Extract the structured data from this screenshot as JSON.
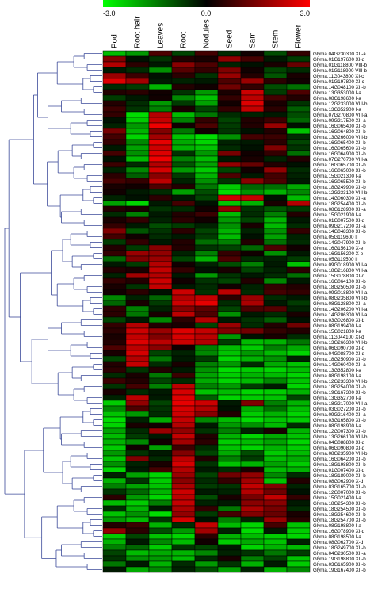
{
  "chart_data": {
    "type": "heatmap",
    "title": "",
    "color_scale": {
      "min": -3.0,
      "mid": 0.0,
      "max": 3.0,
      "min_label": "-3.0",
      "mid_label": "0.0",
      "max_label": "3.0",
      "low_color": "#00ff00",
      "mid_color": "#000000",
      "high_color": "#ff0000"
    },
    "columns": [
      "Pod",
      "Root hair",
      "Leaves",
      "Root",
      "Nodules",
      "Seed",
      "Sam",
      "Stem",
      "Flower"
    ],
    "rows": [
      "Glyma.04G230300 XII-a",
      "Glyma.01G197600 XI-d",
      "Glyma.01G118800 VIII-b",
      "Glyma.01G118900 VIII-b",
      "Glyma.11G043800 XI-c",
      "Glyma.01G197800 XI-c",
      "Glyma.14G048100 XII-b",
      "Glyma.13G353000 I-a",
      "Glyma.08G198600 I-a",
      "Glyma.12G233000 VIII-b",
      "Glyma.13G352900 I-a",
      "Glyma.07G270800 VIII-a",
      "Glyma.09G217500 XII-a",
      "Glyma.16G065400 XII-b",
      "Glyma.16G064800 XII-b",
      "Glyma.13G266000 VIII-b",
      "Glyma.16G065400 XII-b",
      "Glyma.16G065600 XII-b",
      "Glyma.16G064900 XII-b",
      "Glyma.07G270700 VIII-a",
      "Glyma.16G065700 XII-b",
      "Glyma.16G065000 XII-b",
      "Glyma.15G021300 I-a",
      "Glyma.16G065500 XII-b",
      "Glyma.18G249900 XII-b",
      "Glyma.12G233100 VIII-b",
      "Glyma.14G060300 XII-a",
      "Glyma.18G254400 XII-b",
      "Glyma.08G128900 XII-a",
      "Glyma.15G021900 I-a",
      "Glyma.01G007500 XI-d",
      "Glyma.09G217200 XII-a",
      "Glyma.14G048300 XII-b",
      "Glyma.05G119600 II",
      "Glyma.14G047900 XII-b",
      "Glyma.16G156100 X-e",
      "Glyma.16G156200 X-e",
      "Glyma.05G119500 II",
      "Glyma.09G018900 VIII-a",
      "Glyma.18G216800 VIII-a",
      "Glyma.15G078800 XI-d",
      "Glyma.16G064100 XII-b",
      "Glyma.18G250500 XII-b",
      "Glyma.09G018800 VIII-a",
      "Glyma.08G235800 VIII-b",
      "Glyma.08G128800 XII-a",
      "Glyma.14G206200 VIII-a",
      "Glyma.14G206300 VIII-a",
      "Glyma.03G026800 XI-b",
      "Glyma.08G199400 I-a",
      "Glyma.15G021800 I-a",
      "Glyma.11G044100 XI-d",
      "Glyma.13G266300 VIII-b",
      "Glyma.06G090700 XI-d",
      "Glyma.04G088700 XI-d",
      "Glyma.18G250900 XII-b",
      "Glyma.14G060400 XII-a",
      "Glyma.13G352800 I-a",
      "Glyma.08G198100 I-a",
      "Glyma.12G233300 VIII-b",
      "Glyma.18G254000 XII-b",
      "Glyma.19G167300 XII-b",
      "Glyma.13G352700 I-a",
      "Glyma.18G217000 VIII-a",
      "Glyma.03G027200 XII-b",
      "Glyma.09G216400 XII-a",
      "Glyma.03G165800 XII-b",
      "Glyma.08G198900 I-a",
      "Glyma.12G007300 XII-b",
      "Glyma.13G266100 VIII-b",
      "Glyma.04G088800 XI-d",
      "Glyma.06G090800 XI-d",
      "Glyma.08G235900 VIII-b",
      "Glyma.16G064200 XII-b",
      "Glyma.18G198800 XII-b",
      "Glyma.01G007400 XI-d",
      "Glyma.18G189000 XII-b",
      "Glyma.08G062900 X-d",
      "Glyma.03G165700 XII-b",
      "Glyma.12G007000 XII-b",
      "Glyma.15G021400 I-a",
      "Glyma.18G254300 XII-b",
      "Glyma.18G254500 XII-b",
      "Glyma.18G254600 XII-b",
      "Glyma.18G254700 XII-b",
      "Glyma.08G198800 I-a",
      "Glyma.16G078900 XI-d",
      "Glyma.08G198500 I-a",
      "Glyma.08G062700 X-d",
      "Glyma.18G249700 XII-b",
      "Glyma.04G230500 XII-a",
      "Glyma.19G198800 XII-b",
      "Glyma.03G165900 XII-b",
      "Glyma.19G167400 XII-b"
    ],
    "values": [
      [
        -2.2,
        -1.8,
        0.9,
        -0.8,
        0.8,
        -0.5,
        0.2,
        -0.9,
        0.6
      ],
      [
        1.5,
        -0.2,
        -0.6,
        0.4,
        0.3,
        1.7,
        0.8,
        -0.3,
        -0.7
      ],
      [
        2.1,
        0.5,
        -0.3,
        1.6,
        0.9,
        -0.4,
        -0.2,
        0.3,
        1.2
      ],
      [
        -0.3,
        -0.5,
        -1.7,
        1.0,
        0.6,
        1.5,
        0.2,
        -0.8,
        -0.5
      ],
      [
        1.8,
        0.7,
        -0.2,
        0.5,
        -0.6,
        1.8,
        0.4,
        -1.0,
        0.3
      ],
      [
        2.6,
        1.9,
        -0.3,
        -0.4,
        -0.3,
        0.9,
        1.8,
        0.5,
        0.2
      ],
      [
        -0.5,
        -0.7,
        -2.1,
        0.4,
        0.2,
        1.3,
        0.6,
        -0.9,
        -1.3
      ],
      [
        0.4,
        0.5,
        0.2,
        -0.6,
        -1.8,
        0.3,
        2.4,
        -0.7,
        0.9
      ],
      [
        -0.7,
        -0.3,
        0.2,
        -1.6,
        -2.3,
        0.6,
        2.2,
        0.8,
        0.4
      ],
      [
        0.4,
        -0.5,
        -1.8,
        -0.7,
        -1.9,
        0.2,
        2.6,
        0.3,
        -0.6
      ],
      [
        0.7,
        -0.6,
        -1.5,
        0.3,
        -0.8,
        0.6,
        2.3,
        0.5,
        -1.1
      ],
      [
        0.6,
        -2.6,
        2.1,
        -2.2,
        -1.4,
        -0.5,
        -0.4,
        -0.3,
        -0.9
      ],
      [
        -0.2,
        -2.4,
        2.3,
        -1.5,
        0.6,
        -0.8,
        0.4,
        0.7,
        -1.2
      ],
      [
        -0.4,
        -1.8,
        2.8,
        0.2,
        0.9,
        -0.7,
        0.4,
        1.8,
        -0.2
      ],
      [
        1.4,
        -2.1,
        1.5,
        -1.4,
        0.2,
        -0.6,
        -0.2,
        0.4,
        -2.3
      ],
      [
        0.8,
        -2.5,
        1.9,
        -2.3,
        -2.6,
        -1.7,
        0.8,
        0.7,
        -0.5
      ],
      [
        0.6,
        -1.6,
        2.7,
        -2.0,
        -2.5,
        -0.4,
        -0.3,
        0.5,
        -0.8
      ],
      [
        -0.3,
        -1.9,
        2.4,
        -2.1,
        -2.3,
        -0.5,
        -0.2,
        1.5,
        -0.6
      ],
      [
        0.8,
        -1.7,
        2.6,
        -0.6,
        -1.8,
        1.4,
        0.2,
        0.6,
        -1.3
      ],
      [
        -0.2,
        -2.2,
        2.8,
        -1.5,
        -2.2,
        -0.3,
        0.3,
        -0.4,
        0.4
      ],
      [
        0.7,
        -0.5,
        2.1,
        -1.0,
        -1.9,
        1.7,
        1.2,
        0.4,
        -0.2
      ],
      [
        -0.4,
        -1.6,
        2.5,
        -1.8,
        -2.4,
        -0.8,
        0.2,
        1.7,
        -0.5
      ],
      [
        0.5,
        -1.1,
        1.6,
        -0.7,
        -2.1,
        0.9,
        -0.3,
        0.8,
        -0.4
      ],
      [
        0.8,
        0.6,
        2.2,
        -0.4,
        -1.7,
        -0.6,
        1.6,
        0.9,
        -0.3
      ],
      [
        0.3,
        0.2,
        0.9,
        0.4,
        -1.4,
        -2.4,
        -1.2,
        -1.3,
        -2.0
      ],
      [
        0.2,
        -0.3,
        -0.5,
        -1.9,
        -0.9,
        -2.6,
        -1.7,
        -2.1,
        -1.6
      ],
      [
        -0.4,
        -0.2,
        0.5,
        -0.3,
        -0.8,
        2.4,
        2.3,
        -0.2,
        -2.2
      ],
      [
        -1.9,
        -2.5,
        -0.3,
        0.8,
        -0.2,
        -2.3,
        -2.1,
        0.3,
        2.1
      ],
      [
        0.4,
        0.3,
        -0.6,
        -0.5,
        0.2,
        1.7,
        -0.6,
        -1.0,
        -0.7
      ],
      [
        -0.5,
        -1.5,
        -0.3,
        0.4,
        0.7,
        -2.2,
        -0.5,
        -1.5,
        0.4
      ],
      [
        0.3,
        0.6,
        -0.4,
        0.5,
        0.2,
        -1.8,
        -0.8,
        -2.1,
        -0.3
      ],
      [
        0.6,
        -0.3,
        -0.9,
        -0.7,
        -0.4,
        -1.7,
        0.3,
        -2.2,
        -0.5
      ],
      [
        1.5,
        -1.0,
        -0.6,
        0.5,
        -0.8,
        -2.1,
        -0.4,
        -1.7,
        0.6
      ],
      [
        0.8,
        0.2,
        -0.5,
        -0.3,
        -0.7,
        -2.2,
        -0.2,
        -1.9,
        -0.4
      ],
      [
        -0.7,
        0.6,
        -0.3,
        0.4,
        -1.3,
        -1.5,
        0.4,
        -1.3,
        -0.5
      ],
      [
        0.4,
        -0.7,
        1.6,
        0.4,
        -0.6,
        -0.8,
        -1.2,
        0.9,
        0.2
      ],
      [
        0.6,
        1.8,
        1.7,
        -0.4,
        -1.5,
        0.6,
        0.2,
        -1.7,
        -0.3
      ],
      [
        -1.2,
        1.5,
        1.8,
        -0.8,
        -2.1,
        0.9,
        -0.5,
        -0.4,
        -0.7
      ],
      [
        -0.3,
        -0.7,
        2.1,
        0.2,
        -0.4,
        -0.9,
        -1.5,
        -0.3,
        -2.3
      ],
      [
        0.4,
        0.3,
        2.3,
        0.6,
        -0.2,
        0.3,
        -0.8,
        -0.4,
        0.5
      ],
      [
        -0.4,
        1.9,
        2.1,
        -0.3,
        -1.8,
        -0.6,
        -0.3,
        -0.5,
        -1.3
      ],
      [
        0.6,
        0.4,
        2.4,
        0.2,
        -0.6,
        -0.8,
        0.4,
        -1.6,
        -0.3
      ],
      [
        0.3,
        -0.6,
        2.3,
        -0.3,
        -0.5,
        0.2,
        -0.4,
        0.6,
        0.4
      ],
      [
        0.2,
        0.5,
        -0.2,
        2.4,
        -0.6,
        2.2,
        -0.5,
        0.8,
        0.6
      ],
      [
        -1.6,
        -0.4,
        -1.2,
        2.1,
        2.3,
        0.5,
        1.8,
        -0.5,
        -0.3
      ],
      [
        -1.2,
        0.3,
        -0.7,
        2.4,
        2.7,
        -0.5,
        2.0,
        -0.3,
        -0.7
      ],
      [
        0.5,
        -1.5,
        -0.4,
        1.6,
        1.1,
        -0.8,
        0.9,
        1.0,
        -0.4
      ],
      [
        0.5,
        -1.4,
        0.3,
        2.2,
        0.9,
        -1.7,
        -0.3,
        -0.5,
        0.3
      ],
      [
        -0.8,
        -0.3,
        -1.6,
        0.5,
        2.1,
        -0.3,
        -0.6,
        -1.1,
        -0.2
      ],
      [
        0.6,
        2.1,
        0.4,
        0.3,
        -0.8,
        1.8,
        -0.5,
        0.4,
        1.3
      ],
      [
        0.5,
        2.4,
        1.8,
        2.6,
        2.3,
        1.5,
        1.3,
        0.6,
        0.4
      ],
      [
        0.3,
        2.3,
        1.5,
        2.5,
        2.2,
        -1.8,
        -0.2,
        0.3,
        -0.5
      ],
      [
        0.4,
        2.6,
        2.2,
        2.4,
        2.1,
        -0.7,
        -2.2,
        -2.1,
        -1.4
      ],
      [
        0.9,
        2.2,
        1.6,
        0.2,
        -1.5,
        -2.2,
        -2.4,
        -1.5,
        -2.0
      ],
      [
        0.3,
        2.5,
        -0.8,
        -0.4,
        -1.6,
        -2.3,
        -1.8,
        -2.2,
        -2.5
      ],
      [
        -0.8,
        2.1,
        -1.4,
        -0.3,
        -0.7,
        -2.5,
        -2.1,
        -1.7,
        -0.4
      ],
      [
        0.4,
        2.3,
        -0.5,
        0.3,
        -1.5,
        -1.8,
        -0.5,
        -2.0,
        -2.3
      ],
      [
        0.5,
        -0.6,
        0.4,
        -0.3,
        -1.7,
        -2.6,
        -2.4,
        -2.5,
        -2.2
      ],
      [
        -0.5,
        0.3,
        -1.4,
        0.7,
        -1.9,
        -2.4,
        -2.1,
        -2.2,
        -2.5
      ],
      [
        0.7,
        0.4,
        -0.8,
        -0.5,
        -2.0,
        -2.5,
        -2.2,
        -1.6,
        -2.3
      ],
      [
        -0.6,
        0.8,
        -1.5,
        2.2,
        -1.5,
        -1.8,
        -0.7,
        -0.3,
        -2.5
      ],
      [
        0.3,
        -0.5,
        -0.3,
        2.5,
        -2.3,
        -2.2,
        -2.5,
        -2.4,
        -2.1
      ],
      [
        -0.4,
        2.2,
        -0.3,
        2.6,
        -1.1,
        -2.5,
        -2.4,
        -2.3,
        -0.8
      ],
      [
        -2.4,
        1.7,
        -0.8,
        2.7,
        2.4,
        -0.3,
        1.5,
        -1.5,
        -2.1
      ],
      [
        -1.6,
        0.9,
        -0.6,
        2.5,
        2.1,
        -0.2,
        -2.0,
        -1.3,
        -2.2
      ],
      [
        -2.3,
        -1.8,
        -0.5,
        2.4,
        1.6,
        0.4,
        -2.4,
        -2.1,
        -2.5
      ],
      [
        -2.6,
        -0.4,
        -2.0,
        2.3,
        -1.6,
        -2.2,
        -2.6,
        -2.3,
        -2.4
      ],
      [
        -2.5,
        0.3,
        0.2,
        2.1,
        -0.3,
        -1.8,
        -1.7,
        -2.2,
        -0.5
      ],
      [
        -1.9,
        -0.5,
        1.8,
        1.7,
        -0.6,
        -1.5,
        -0.4,
        0.3,
        -2.1
      ],
      [
        -2.2,
        -0.7,
        -0.3,
        2.3,
        0.4,
        -2.1,
        -2.5,
        -2.0,
        -2.3
      ],
      [
        -2.1,
        -1.6,
        0.2,
        1.9,
        0.5,
        -2.4,
        -2.2,
        -1.9,
        -2.5
      ],
      [
        -2.4,
        0.2,
        -1.9,
        0.7,
        -0.5,
        -2.3,
        -2.5,
        -2.1,
        -2.4
      ],
      [
        -1.8,
        -0.6,
        -0.3,
        1.5,
        -0.8,
        -2.0,
        -0.9,
        -2.4,
        -2.2
      ],
      [
        -2.3,
        1.5,
        -0.5,
        2.2,
        0.4,
        -1.5,
        -0.7,
        -2.2,
        -2.0
      ],
      [
        -1.7,
        -0.4,
        0.3,
        2.5,
        -0.6,
        -2.3,
        -2.1,
        -1.9,
        -2.4
      ],
      [
        -2.5,
        -0.3,
        0.8,
        2.1,
        -0.3,
        -0.5,
        0.3,
        -2.2,
        -2.1
      ],
      [
        -0.4,
        -1.9,
        -2.5,
        1.8,
        -0.8,
        1.3,
        1.7,
        -1.6,
        -0.5
      ],
      [
        -2.1,
        -0.6,
        -2.4,
        1.6,
        -0.5,
        0.6,
        1.9,
        -2.3,
        0.4
      ],
      [
        -1.5,
        -1.9,
        -2.3,
        2.0,
        -0.7,
        -0.6,
        2.3,
        1.5,
        -0.4
      ],
      [
        -0.6,
        -1.2,
        -2.1,
        2.4,
        -0.3,
        -0.4,
        2.1,
        1.3,
        -0.2
      ],
      [
        0.5,
        -1.8,
        -2.5,
        2.2,
        -0.9,
        0.3,
        1.4,
        2.3,
        0.6
      ],
      [
        -2.2,
        -2.4,
        -1.5,
        2.3,
        -0.4,
        -0.3,
        1.6,
        1.6,
        -0.3
      ],
      [
        -0.5,
        -2.1,
        -0.3,
        2.0,
        0.6,
        -1.4,
        2.0,
        1.4,
        -0.5
      ],
      [
        -2.3,
        -1.7,
        -2.6,
        1.7,
        -0.7,
        0.8,
        1.5,
        1.2,
        0.3
      ],
      [
        -1.8,
        -2.2,
        -0.6,
        2.5,
        -0.2,
        -1.5,
        -0.4,
        1.8,
        0.5
      ],
      [
        0.4,
        0.7,
        -2.1,
        -0.5,
        2.3,
        -2.2,
        -2.5,
        0.8,
        -2.3
      ],
      [
        1.7,
        0.5,
        -0.9,
        -1.8,
        1.9,
        -0.4,
        -2.6,
        -0.3,
        -2.4
      ],
      [
        -2.4,
        -0.8,
        -2.3,
        -2.5,
        0.5,
        -2.1,
        -2.2,
        -2.4,
        -2.5
      ],
      [
        -2.1,
        -0.3,
        -1.6,
        -2.2,
        0.2,
        -2.4,
        -2.0,
        -2.3,
        -0.4
      ],
      [
        -1.5,
        -1.2,
        -2.4,
        -0.6,
        -0.8,
        -0.3,
        -2.5,
        -2.1,
        -2.2
      ],
      [
        -0.8,
        -2.2,
        -2.0,
        -2.1,
        -1.6,
        -0.4,
        -0.6,
        -1.4,
        -0.7
      ],
      [
        -0.6,
        -1.7,
        -1.8,
        -2.2,
        -0.5,
        0.3,
        -1.5,
        -0.8,
        -2.3
      ],
      [
        -1.4,
        -0.3,
        -2.1,
        -0.5,
        -1.8,
        -0.6,
        -2.1,
        -0.3,
        -2.4
      ],
      [
        -0.3,
        -2.0,
        -1.6,
        -0.4,
        -0.9,
        -1.9,
        -0.4,
        -2.1,
        -1.6
      ]
    ],
    "dendrogram": "row clustering tree on the left (blue lines)",
    "legend": "color bar at top",
    "grid": false
  }
}
